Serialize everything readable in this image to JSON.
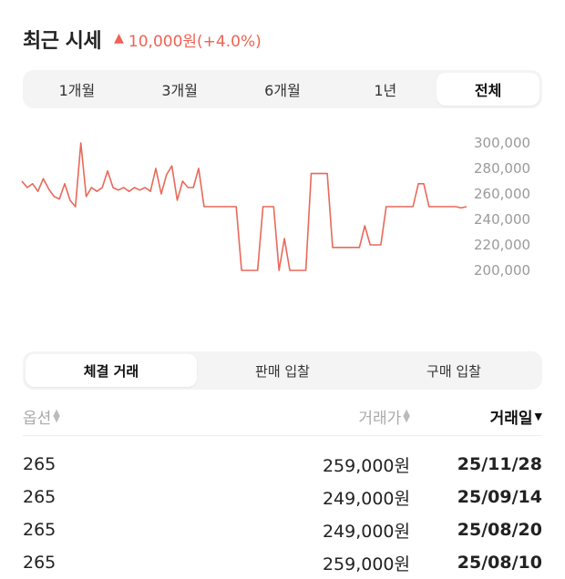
{
  "header": {
    "title": "최근 시세",
    "change_icon": "up-triangle-icon",
    "change_text": "10,000원(+4.0%)",
    "change_color": "#ef6253"
  },
  "period_tabs": [
    {
      "label": "1개월",
      "active": false
    },
    {
      "label": "3개월",
      "active": false
    },
    {
      "label": "6개월",
      "active": false
    },
    {
      "label": "1년",
      "active": false
    },
    {
      "label": "전체",
      "active": true
    }
  ],
  "chart_data": {
    "type": "line",
    "line_color": "#e8695a",
    "ylim": [
      200000,
      300000
    ],
    "yticks": [
      "300,000",
      "280,000",
      "260,000",
      "240,000",
      "220,000",
      "200,000"
    ],
    "x": [
      0,
      1,
      2,
      3,
      4,
      5,
      6,
      7,
      8,
      9,
      10,
      11,
      12,
      13,
      14,
      15,
      16,
      17,
      18,
      19,
      20,
      21,
      22,
      23,
      24,
      25,
      26,
      27,
      28,
      29,
      30,
      31,
      32,
      33,
      34,
      35,
      36,
      37,
      38,
      39,
      40,
      41,
      42,
      43,
      44,
      45,
      46,
      47,
      48,
      49,
      50,
      51,
      52,
      53,
      54,
      55,
      56,
      57,
      58,
      59,
      60,
      61,
      62,
      63,
      64,
      65,
      66,
      67,
      68,
      69,
      70,
      71,
      72,
      73,
      74,
      75,
      76,
      77,
      78,
      79,
      80,
      81,
      82,
      83
    ],
    "values": [
      270000,
      265000,
      268000,
      262000,
      272000,
      264000,
      258000,
      256000,
      268000,
      255000,
      250000,
      300000,
      258000,
      265000,
      262000,
      265000,
      278000,
      265000,
      263000,
      265000,
      262000,
      265000,
      263000,
      265000,
      262000,
      280000,
      260000,
      275000,
      282000,
      255000,
      270000,
      265000,
      265000,
      280000,
      250000,
      250000,
      250000,
      250000,
      250000,
      250000,
      250000,
      200000,
      200000,
      200000,
      200000,
      250000,
      250000,
      250000,
      200000,
      225000,
      200000,
      200000,
      200000,
      200000,
      276000,
      276000,
      276000,
      276000,
      218000,
      218000,
      218000,
      218000,
      218000,
      218000,
      235000,
      220000,
      220000,
      220000,
      250000,
      250000,
      250000,
      250000,
      250000,
      250000,
      268000,
      268000,
      250000,
      250000,
      250000,
      250000,
      250000,
      250000,
      249000,
      250000
    ],
    "grid": false,
    "legend": "none"
  },
  "trade_tabs": [
    {
      "label": "체결 거래",
      "active": true
    },
    {
      "label": "판매 입찰",
      "active": false
    },
    {
      "label": "구매 입찰",
      "active": false
    }
  ],
  "table": {
    "headers": {
      "option": "옵션",
      "price": "거래가",
      "date": "거래일"
    },
    "rows": [
      {
        "option": "265",
        "price": "259,000원",
        "date": "25/11/28"
      },
      {
        "option": "265",
        "price": "249,000원",
        "date": "25/09/14"
      },
      {
        "option": "265",
        "price": "249,000원",
        "date": "25/08/20"
      },
      {
        "option": "265",
        "price": "259,000원",
        "date": "25/08/10"
      }
    ]
  }
}
